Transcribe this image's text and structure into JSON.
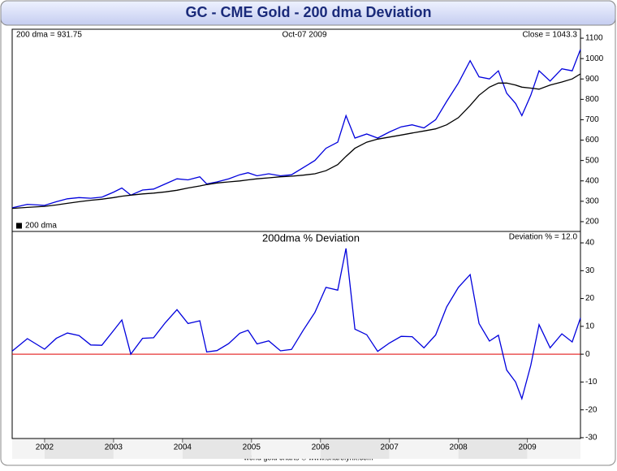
{
  "title": "GC - CME Gold - 200 dma Deviation",
  "footer": "world gold charts © www.sharelynx.com",
  "chart_data": [
    {
      "type": "line",
      "annotations": [
        "200 dma =  931.75",
        "Oct-07  2009",
        "Close = 1043.3"
      ],
      "x": [
        2001.53,
        2001.75,
        2002.0,
        2002.17,
        2002.33,
        2002.5,
        2002.67,
        2002.83,
        2003.0,
        2003.12,
        2003.25,
        2003.42,
        2003.58,
        2003.75,
        2003.92,
        2004.08,
        2004.25,
        2004.35,
        2004.5,
        2004.67,
        2004.83,
        2004.95,
        2005.08,
        2005.25,
        2005.42,
        2005.58,
        2005.75,
        2005.92,
        2006.08,
        2006.25,
        2006.37,
        2006.5,
        2006.67,
        2006.83,
        2007.0,
        2007.17,
        2007.33,
        2007.5,
        2007.67,
        2007.83,
        2008.0,
        2008.17,
        2008.3,
        2008.45,
        2008.58,
        2008.7,
        2008.83,
        2008.92,
        2009.05,
        2009.17,
        2009.33,
        2009.5,
        2009.65,
        2009.77
      ],
      "series": [
        {
          "color": "#0000dd",
          "values": [
            268,
            285,
            280,
            298,
            312,
            318,
            315,
            320,
            345,
            365,
            330,
            355,
            360,
            385,
            410,
            405,
            420,
            385,
            395,
            410,
            430,
            440,
            425,
            435,
            425,
            430,
            465,
            500,
            560,
            590,
            720,
            610,
            630,
            610,
            640,
            665,
            675,
            660,
            700,
            790,
            880,
            990,
            910,
            900,
            940,
            830,
            780,
            720,
            820,
            940,
            890,
            950,
            940,
            1045
          ]
        },
        {
          "name": "200 dma",
          "color": "#000000",
          "values": [
            265,
            270,
            275,
            282,
            290,
            298,
            305,
            310,
            318,
            325,
            330,
            336,
            340,
            346,
            354,
            365,
            375,
            382,
            390,
            395,
            400,
            405,
            410,
            415,
            420,
            423,
            428,
            435,
            450,
            480,
            520,
            560,
            590,
            605,
            615,
            625,
            635,
            645,
            655,
            675,
            710,
            770,
            820,
            860,
            880,
            880,
            870,
            860,
            855,
            850,
            870,
            885,
            900,
            925
          ]
        }
      ],
      "xlim": [
        2001.53,
        2009.77
      ],
      "ylim": [
        152,
        1144
      ],
      "yticks": [
        200,
        300,
        400,
        500,
        600,
        700,
        800,
        900,
        1000,
        1100
      ]
    },
    {
      "type": "line",
      "title": "200dma  %  Deviation",
      "annotations": [
        "Deviation % = 12.0"
      ],
      "x": [
        2001.53,
        2001.75,
        2002.0,
        2002.17,
        2002.33,
        2002.5,
        2002.67,
        2002.83,
        2003.0,
        2003.12,
        2003.25,
        2003.42,
        2003.58,
        2003.75,
        2003.92,
        2004.08,
        2004.25,
        2004.35,
        2004.5,
        2004.67,
        2004.83,
        2004.95,
        2005.08,
        2005.25,
        2005.42,
        2005.58,
        2005.75,
        2005.92,
        2006.08,
        2006.25,
        2006.37,
        2006.5,
        2006.67,
        2006.83,
        2007.0,
        2007.17,
        2007.33,
        2007.5,
        2007.67,
        2007.83,
        2008.0,
        2008.17,
        2008.3,
        2008.45,
        2008.58,
        2008.7,
        2008.83,
        2008.92,
        2009.05,
        2009.17,
        2009.33,
        2009.5,
        2009.65,
        2009.77
      ],
      "series": [
        {
          "color": "#0000dd",
          "values": [
            1.1,
            5.6,
            1.8,
            5.7,
            7.6,
            6.7,
            3.3,
            3.2,
            8.5,
            12.3,
            0,
            5.7,
            5.9,
            11.3,
            16,
            11,
            12,
            0.8,
            1.3,
            3.8,
            7.5,
            8.6,
            3.7,
            4.8,
            1.2,
            1.7,
            8.6,
            15,
            24,
            23,
            38,
            9,
            7,
            1,
            4,
            6.4,
            6.3,
            2.3,
            6.9,
            17,
            24,
            28.6,
            11,
            4.7,
            6.8,
            -5.7,
            -10,
            -16,
            -4,
            10.6,
            2.3,
            7.3,
            4.4,
            13
          ]
        }
      ],
      "reference_line": {
        "value": 0,
        "color": "#e00000"
      },
      "xlim": [
        2001.53,
        2009.77
      ],
      "xticks": [
        2002,
        2003,
        2004,
        2005,
        2006,
        2007,
        2008,
        2009
      ],
      "ylim": [
        -30.3,
        44.1
      ],
      "yticks": [
        -30,
        -20,
        -10,
        0,
        10,
        20,
        30,
        40
      ]
    }
  ]
}
